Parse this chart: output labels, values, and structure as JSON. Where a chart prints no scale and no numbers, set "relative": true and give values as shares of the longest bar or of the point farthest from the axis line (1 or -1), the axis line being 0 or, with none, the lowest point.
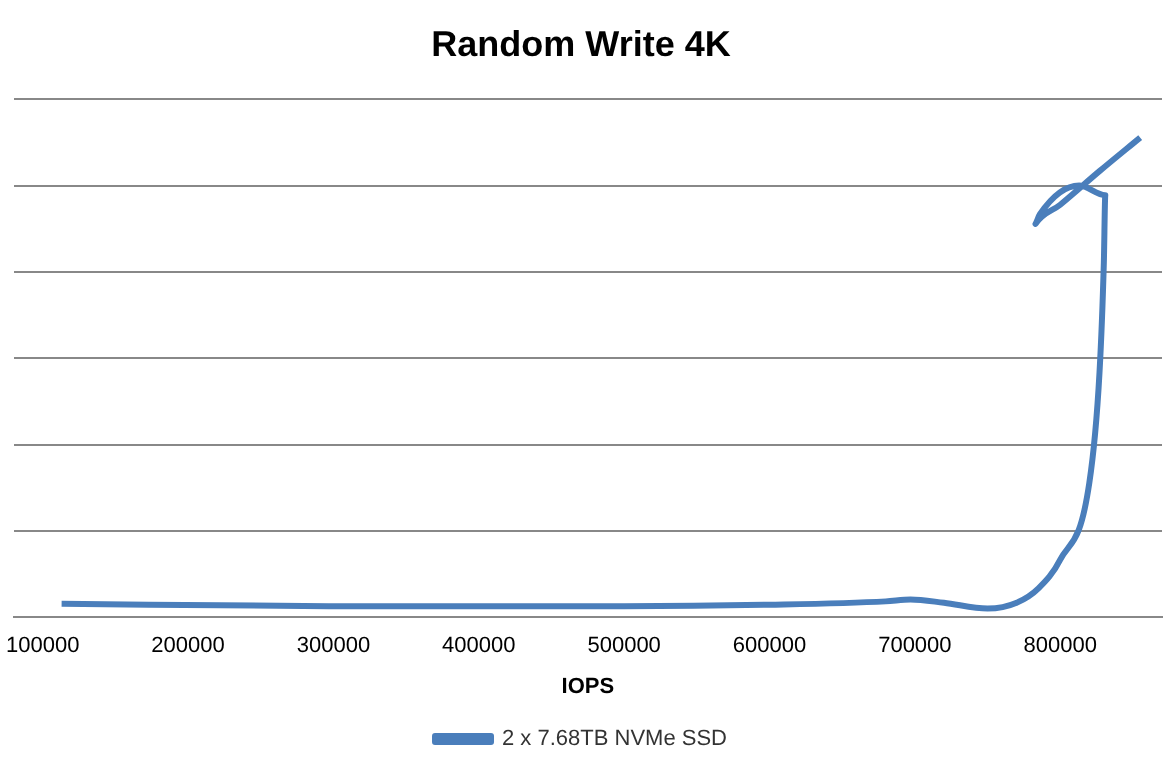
{
  "chart_data": {
    "type": "line",
    "title": "Random Write 4K",
    "xlabel": "IOPS",
    "relative": true,
    "xlim": [
      80000,
      870000
    ],
    "xticks": [
      100000,
      200000,
      300000,
      400000,
      500000,
      600000,
      700000,
      800000
    ],
    "grid": "y",
    "legend": "bottom",
    "marker": "none",
    "series": [
      {
        "name": "2 x 7.68TB NVMe SSD",
        "color": "#4a7ebb",
        "x": [
          113000,
          300000,
          500000,
          600000,
          680000,
          697000,
          720000,
          750000,
          770000,
          785000,
          800000,
          820000,
          827000,
          830000,
          831000,
          813000,
          786000,
          783000,
          800000,
          827000,
          855000
        ],
        "values": [
          0.028,
          0.023,
          0.023,
          0.026,
          0.033,
          0.037,
          0.03,
          0.018,
          0.03,
          0.06,
          0.12,
          0.28,
          0.51,
          0.74,
          0.88,
          0.9,
          0.84,
          0.82,
          0.86,
          0.93,
          1
        ]
      }
    ]
  }
}
